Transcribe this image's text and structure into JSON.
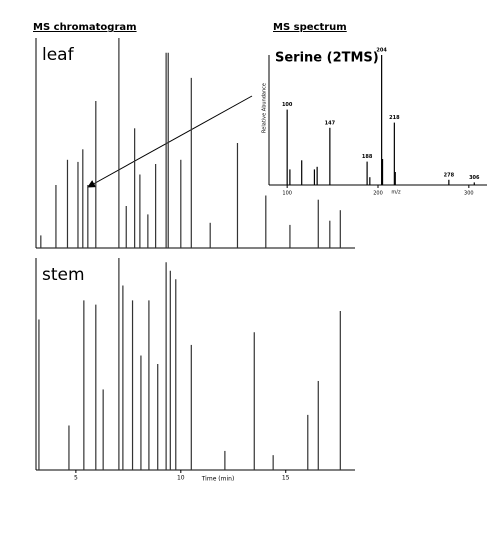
{
  "chart_data": [
    {
      "type": "stick",
      "title": "MS chromatogram",
      "label": "leaf",
      "color": "#333333",
      "xlim": [
        3.1,
        18.3
      ],
      "ylim": [
        0,
        100
      ],
      "x": [
        3.33,
        4.05,
        4.6,
        5.1,
        5.33,
        5.57,
        5.95,
        7.05,
        7.4,
        7.8,
        8.05,
        8.43,
        8.8,
        9.3,
        9.4,
        10.0,
        10.5,
        11.4,
        12.7,
        14.05,
        15.2,
        16.55,
        17.1,
        17.6
      ],
      "values": [
        6,
        30,
        42,
        41,
        47,
        30,
        70,
        100,
        20,
        57,
        35,
        16,
        40,
        93,
        93,
        42,
        81,
        12,
        50,
        25,
        11,
        23,
        13,
        18
      ]
    },
    {
      "type": "stick",
      "label": "stem",
      "color": "#333333",
      "xlabel": "Time (min)",
      "xlim": [
        3.1,
        18.3
      ],
      "ylim": [
        0,
        100
      ],
      "xticks": [
        5,
        10,
        15
      ],
      "x": [
        3.24,
        4.67,
        5.38,
        5.95,
        6.3,
        7.05,
        7.24,
        7.7,
        8.1,
        8.48,
        8.9,
        9.3,
        9.5,
        9.76,
        10.5,
        12.1,
        13.5,
        14.4,
        16.05,
        16.55,
        17.6
      ],
      "values": [
        71,
        21,
        80,
        78,
        38,
        100,
        87,
        80,
        54,
        80,
        50,
        98,
        94,
        90,
        59,
        9,
        65,
        7,
        26,
        42,
        75
      ]
    },
    {
      "type": "stick",
      "title": "MS spectrum",
      "compound": "Serine (2TMS)",
      "color": "#000000",
      "ylabel": "Relative Abundance",
      "xlabel": "m/z",
      "xlim": [
        80,
        320
      ],
      "ylim": [
        0,
        100
      ],
      "xticks": [
        100,
        200,
        300
      ],
      "x": [
        100,
        103,
        116,
        130,
        133,
        147,
        188,
        191,
        204,
        205,
        218,
        219,
        278,
        306
      ],
      "values": [
        58,
        12,
        19,
        12,
        14,
        44,
        18,
        6,
        100,
        20,
        48,
        10,
        4,
        2
      ],
      "peak_labels": [
        100,
        null,
        null,
        null,
        null,
        147,
        188,
        null,
        204,
        null,
        218,
        null,
        278,
        306
      ]
    }
  ]
}
